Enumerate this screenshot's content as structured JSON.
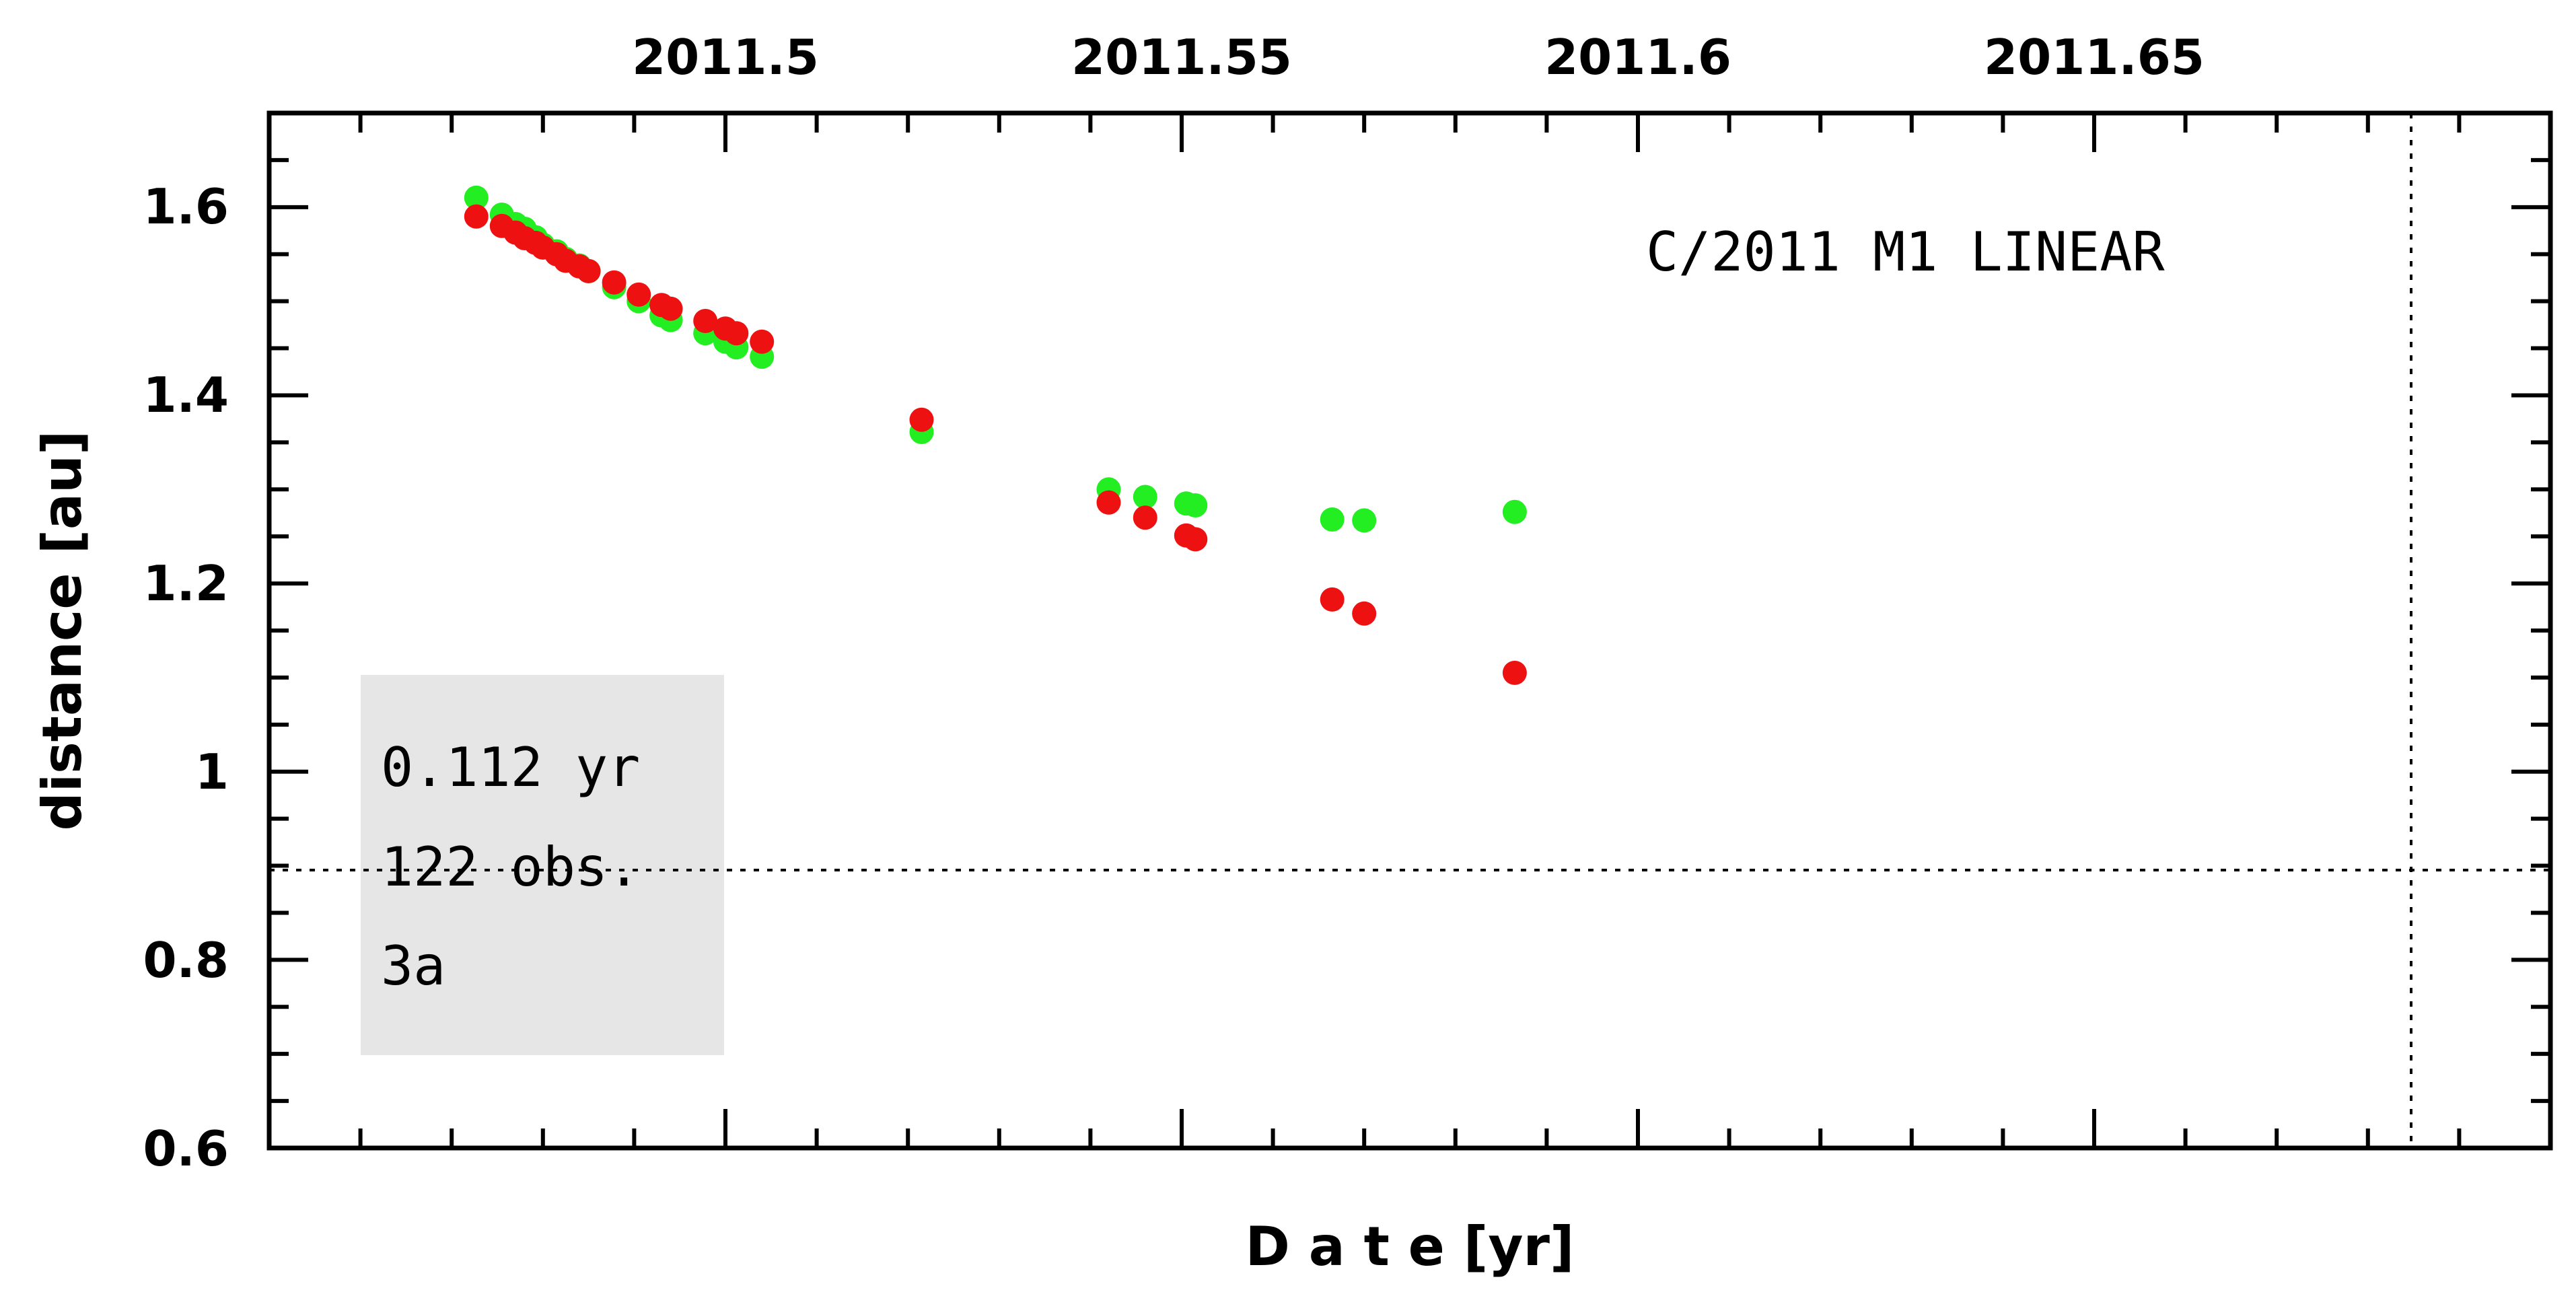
{
  "chart_data": {
    "type": "scatter",
    "title": "C/2011 M1 LINEAR",
    "xlabel": "D a t e [yr]",
    "ylabel": "distance [au]",
    "xlim": [
      2011.45,
      2011.7
    ],
    "ylim": [
      0.6,
      1.7
    ],
    "x_ticks": [
      "2011.5",
      "2011.55",
      "2011.6",
      "2011.65"
    ],
    "y_ticks": [
      "0.6",
      "0.8",
      "1",
      "1.2",
      "1.4",
      "1.6"
    ],
    "grid": false,
    "reference_lines": {
      "horizontal_y": 0.9,
      "vertical_x": 2011.6865
    },
    "info_box": [
      "0.112 yr",
      "122 obs.",
      "3a"
    ],
    "colors": {
      "series_green": "#22ee22",
      "series_red": "#ee1111",
      "info_box": "#e6e6e6"
    },
    "series": [
      {
        "color": "#22ee22",
        "points": [
          [
            2011.4727,
            1.61
          ],
          [
            2011.4755,
            1.592
          ],
          [
            2011.477,
            1.582
          ],
          [
            2011.478,
            1.577
          ],
          [
            2011.4792,
            1.568
          ],
          [
            2011.48,
            1.56
          ],
          [
            2011.4815,
            1.553
          ],
          [
            2011.4825,
            1.545
          ],
          [
            2011.484,
            1.538
          ],
          [
            2011.485,
            1.532
          ],
          [
            2011.4878,
            1.515
          ],
          [
            2011.4905,
            1.5
          ],
          [
            2011.493,
            1.485
          ],
          [
            2011.494,
            1.48
          ],
          [
            2011.4978,
            1.466
          ],
          [
            2011.5,
            1.457
          ],
          [
            2011.5012,
            1.451
          ],
          [
            2011.504,
            1.441
          ],
          [
            2011.5215,
            1.361
          ],
          [
            2011.542,
            1.3
          ],
          [
            2011.546,
            1.292
          ],
          [
            2011.5505,
            1.285
          ],
          [
            2011.5515,
            1.283
          ],
          [
            2011.5665,
            1.268
          ],
          [
            2011.57,
            1.267
          ],
          [
            2011.5865,
            1.276
          ]
        ]
      },
      {
        "color": "#ee1111",
        "points": [
          [
            2011.4727,
            1.59
          ],
          [
            2011.4755,
            1.58
          ],
          [
            2011.477,
            1.573
          ],
          [
            2011.478,
            1.567
          ],
          [
            2011.4792,
            1.562
          ],
          [
            2011.48,
            1.557
          ],
          [
            2011.4815,
            1.55
          ],
          [
            2011.4825,
            1.543
          ],
          [
            2011.484,
            1.537
          ],
          [
            2011.485,
            1.532
          ],
          [
            2011.4878,
            1.52
          ],
          [
            2011.4905,
            1.507
          ],
          [
            2011.493,
            1.496
          ],
          [
            2011.494,
            1.492
          ],
          [
            2011.4978,
            1.479
          ],
          [
            2011.5,
            1.471
          ],
          [
            2011.5012,
            1.466
          ],
          [
            2011.504,
            1.457
          ],
          [
            2011.5215,
            1.374
          ],
          [
            2011.542,
            1.286
          ],
          [
            2011.546,
            1.27
          ],
          [
            2011.5505,
            1.251
          ],
          [
            2011.5515,
            1.247
          ],
          [
            2011.5665,
            1.183
          ],
          [
            2011.57,
            1.168
          ],
          [
            2011.5865,
            1.105
          ]
        ]
      }
    ]
  }
}
